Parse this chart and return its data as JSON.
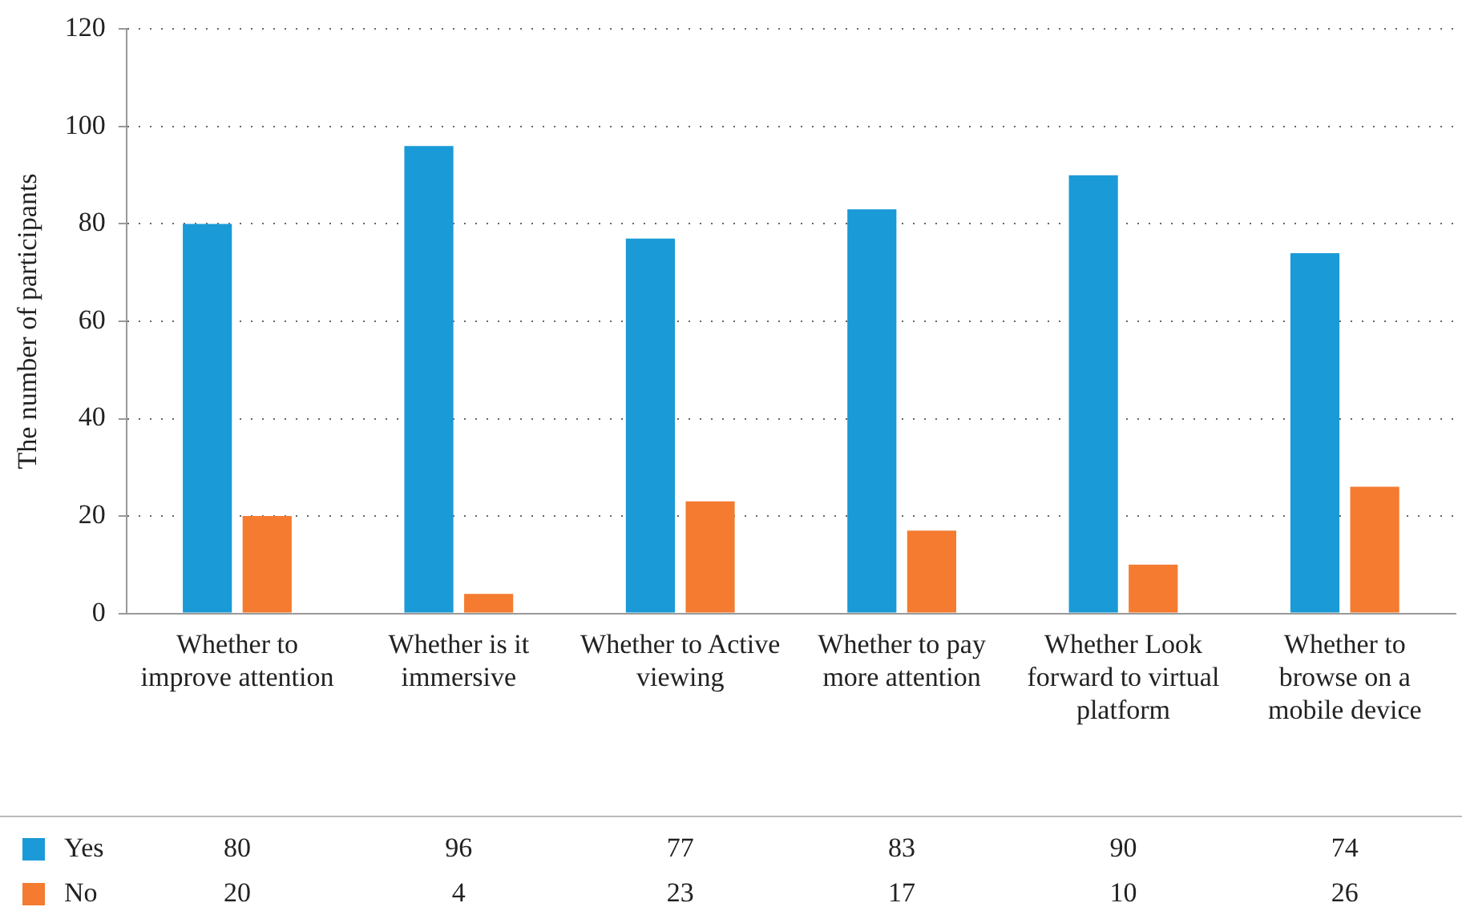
{
  "chart_data": {
    "type": "bar",
    "ylabel": "The number of participants",
    "categories": [
      "Whether to improve attention",
      "Whether is it immersive",
      "Whether to Active viewing",
      "Whether to pay more attention",
      "Whether Look forward to virtual platform",
      "Whether to browse on a mobile device"
    ],
    "series": [
      {
        "name": "Yes",
        "color": "#1a9ad6",
        "values": [
          80,
          96,
          77,
          83,
          90,
          74
        ]
      },
      {
        "name": "No",
        "color": "#f47b30",
        "values": [
          20,
          4,
          23,
          17,
          10,
          26
        ]
      }
    ],
    "ylim": [
      0,
      120
    ],
    "yticks": [
      0,
      20,
      40,
      60,
      80,
      100,
      120
    ],
    "grid": "y",
    "legend": "bottom",
    "data_labels": true
  }
}
